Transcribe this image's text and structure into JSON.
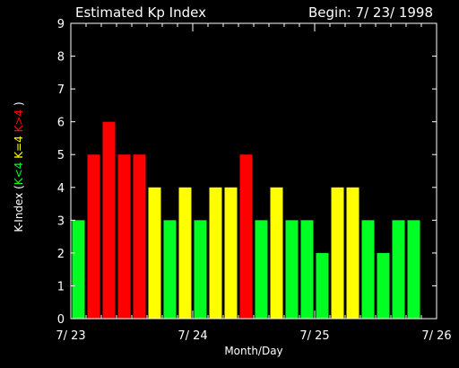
{
  "chart_data": {
    "type": "bar",
    "title": "Estimated Kp Index",
    "begin_label": "Begin: 7/ 23/ 1998",
    "xlabel": "Month/Day",
    "ylabel_parts": [
      {
        "text": "K-Index (",
        "color": "#ffffff"
      },
      {
        "text": "K<4",
        "color": "#00ff22"
      },
      {
        "text": " K=4",
        "color": "#ffff00"
      },
      {
        "text": " K>4",
        "color": "#ff0000"
      },
      {
        "text": " )",
        "color": "#ffffff"
      }
    ],
    "ylim": [
      0,
      9
    ],
    "yticks": [
      0,
      1,
      2,
      3,
      4,
      5,
      6,
      7,
      8,
      9
    ],
    "x_day_ticks": [
      "7/ 23",
      "7/ 24",
      "7/ 25",
      "7/ 26"
    ],
    "bars_per_day": 8,
    "values": [
      3,
      5,
      6,
      5,
      5,
      4,
      3,
      4,
      3,
      4,
      4,
      5,
      3,
      4,
      3,
      3,
      2,
      4,
      4,
      3,
      2,
      3,
      3
    ],
    "colors": {
      "low": "#00ff22",
      "equal": "#ffff00",
      "high": "#ff0000",
      "axis": "#ffffff",
      "background": "#000000"
    }
  }
}
